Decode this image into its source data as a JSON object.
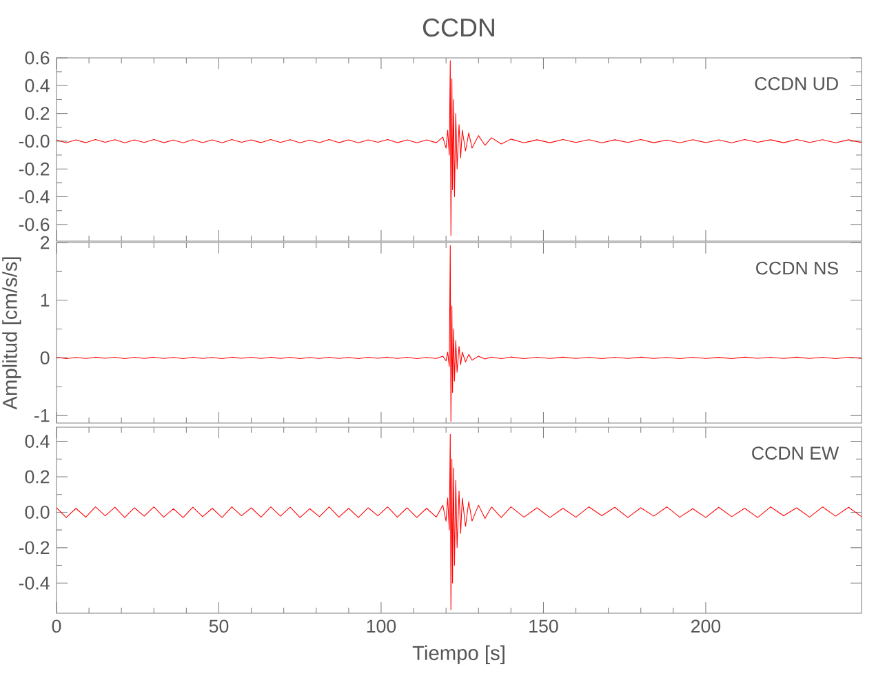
{
  "chart_data": [
    {
      "type": "line",
      "title": "CCDN",
      "annotations": [
        "CCDN   UD"
      ],
      "color": "#ff0000",
      "marker": "none",
      "tick_labels": "y",
      "xlim": [
        0,
        248
      ],
      "xticks": [
        0,
        50,
        100,
        150,
        200
      ],
      "ylim": [
        -0.72,
        0.6
      ],
      "yticks": [
        -0.6,
        -0.4,
        -0.2,
        {
          "value": 0,
          "label": "-0.0"
        },
        0.2,
        0.4,
        0.6
      ],
      "x": [
        0,
        3,
        6,
        9,
        12,
        15,
        18,
        21,
        24,
        27,
        30,
        33,
        36,
        39,
        42,
        45,
        48,
        51,
        54,
        57,
        60,
        63,
        66,
        69,
        72,
        75,
        78,
        81,
        84,
        87,
        90,
        93,
        96,
        99,
        102,
        105,
        108,
        111,
        114,
        117,
        119,
        120,
        120.5,
        121,
        121.3,
        121.5,
        121.8,
        122,
        122.3,
        122.6,
        123,
        123.4,
        124,
        124.5,
        125,
        126,
        127,
        128,
        130,
        132,
        134,
        137,
        140,
        144,
        148,
        152,
        156,
        160,
        164,
        168,
        172,
        176,
        180,
        184,
        188,
        192,
        196,
        200,
        204,
        208,
        212,
        216,
        220,
        224,
        228,
        232,
        236,
        240,
        244,
        248
      ],
      "values": [
        0.01,
        -0.012,
        0.009,
        -0.011,
        0.012,
        -0.008,
        0.011,
        -0.012,
        0.01,
        -0.009,
        0.012,
        -0.011,
        0.008,
        -0.012,
        0.011,
        -0.01,
        0.009,
        -0.012,
        0.012,
        -0.008,
        0.01,
        -0.011,
        0.012,
        -0.009,
        0.011,
        -0.012,
        0.008,
        -0.01,
        0.012,
        -0.011,
        0.009,
        -0.012,
        0.01,
        -0.008,
        0.012,
        -0.011,
        0.01,
        -0.012,
        0.009,
        -0.011,
        0.03,
        -0.05,
        0.08,
        -0.1,
        0.58,
        -0.68,
        0.45,
        -0.35,
        0.3,
        -0.4,
        0.2,
        -0.2,
        0.12,
        -0.12,
        0.08,
        -0.07,
        0.06,
        -0.05,
        0.04,
        -0.03,
        0.025,
        -0.02,
        0.015,
        -0.012,
        0.01,
        -0.011,
        0.012,
        -0.009,
        0.011,
        -0.012,
        0.01,
        -0.009,
        0.012,
        -0.011,
        0.008,
        -0.012,
        0.011,
        -0.01,
        0.009,
        -0.012,
        0.012,
        -0.008,
        0.01,
        -0.011,
        0.012,
        -0.009,
        0.011,
        -0.012,
        0.01,
        -0.01
      ]
    },
    {
      "type": "line",
      "ylabel": "Amplitud [cm/s/s]",
      "annotations": [
        "CCDN   NS"
      ],
      "color": "#ff0000",
      "marker": "none",
      "tick_labels": "y",
      "xlim": [
        0,
        248
      ],
      "xticks": [
        0,
        50,
        100,
        150,
        200
      ],
      "ylim": [
        -1.13,
        2
      ],
      "yticks": [
        -1,
        0,
        1,
        2
      ],
      "x": [
        0,
        3,
        6,
        9,
        12,
        15,
        18,
        21,
        24,
        27,
        30,
        33,
        36,
        39,
        42,
        45,
        48,
        51,
        54,
        57,
        60,
        63,
        66,
        69,
        72,
        75,
        78,
        81,
        84,
        87,
        90,
        93,
        96,
        99,
        102,
        105,
        108,
        111,
        114,
        117,
        119,
        120,
        120.5,
        121,
        121.3,
        121.5,
        121.8,
        122,
        122.3,
        122.6,
        123,
        123.4,
        124,
        124.5,
        125,
        126,
        127,
        128,
        130,
        132,
        134,
        137,
        140,
        144,
        148,
        152,
        156,
        160,
        164,
        168,
        172,
        176,
        180,
        184,
        188,
        192,
        196,
        200,
        204,
        208,
        212,
        216,
        220,
        224,
        228,
        232,
        236,
        240,
        244,
        248
      ],
      "values": [
        0.01,
        -0.012,
        0.009,
        -0.011,
        0.012,
        -0.008,
        0.011,
        -0.012,
        0.01,
        -0.009,
        0.012,
        -0.011,
        0.008,
        -0.012,
        0.011,
        -0.01,
        0.009,
        -0.012,
        0.012,
        -0.008,
        0.01,
        -0.011,
        0.012,
        -0.009,
        0.011,
        -0.012,
        0.008,
        -0.01,
        0.012,
        -0.011,
        0.009,
        -0.012,
        0.01,
        -0.008,
        0.012,
        -0.011,
        0.01,
        -0.012,
        0.009,
        -0.011,
        0.03,
        -0.05,
        0.1,
        -0.15,
        1.95,
        -1.1,
        0.9,
        -0.6,
        0.5,
        -0.4,
        0.3,
        -0.25,
        0.2,
        -0.12,
        0.1,
        -0.07,
        0.06,
        -0.04,
        0.03,
        -0.02,
        0.015,
        -0.012,
        0.015,
        -0.012,
        0.01,
        -0.011,
        0.012,
        -0.009,
        0.011,
        -0.012,
        0.01,
        -0.009,
        0.012,
        -0.011,
        0.008,
        -0.012,
        0.011,
        -0.01,
        0.009,
        -0.012,
        0.012,
        -0.008,
        0.01,
        -0.011,
        0.012,
        -0.009,
        0.011,
        -0.012,
        0.01,
        -0.01
      ]
    },
    {
      "type": "line",
      "xlabel": "Tiempo [s]",
      "annotations": [
        "CCDN   EW"
      ],
      "color": "#ff0000",
      "marker": "none",
      "xlim": [
        0,
        248
      ],
      "xticks": [
        0,
        50,
        100,
        150,
        200
      ],
      "ylim": [
        -0.57,
        0.48
      ],
      "yticks": [
        -0.4,
        -0.2,
        {
          "value": 0,
          "label": "0.0"
        },
        0.2,
        0.4
      ],
      "x": [
        0,
        3,
        6,
        9,
        12,
        15,
        18,
        21,
        24,
        27,
        30,
        33,
        36,
        39,
        42,
        45,
        48,
        51,
        54,
        57,
        60,
        63,
        66,
        69,
        72,
        75,
        78,
        81,
        84,
        87,
        90,
        93,
        96,
        99,
        102,
        105,
        108,
        111,
        114,
        117,
        119,
        120,
        120.5,
        121,
        121.3,
        121.5,
        121.8,
        122,
        122.3,
        122.6,
        123,
        123.4,
        124,
        124.5,
        125,
        126,
        127,
        128,
        130,
        132,
        134,
        137,
        140,
        144,
        148,
        152,
        156,
        160,
        164,
        168,
        172,
        176,
        180,
        184,
        188,
        192,
        196,
        200,
        204,
        208,
        212,
        216,
        220,
        224,
        228,
        232,
        236,
        240,
        244,
        248
      ],
      "values": [
        0.025,
        -0.03,
        0.022,
        -0.028,
        0.03,
        -0.02,
        0.028,
        -0.03,
        0.025,
        -0.022,
        0.03,
        -0.028,
        0.02,
        -0.03,
        0.028,
        -0.025,
        0.022,
        -0.03,
        0.03,
        -0.02,
        0.025,
        -0.028,
        0.03,
        -0.022,
        0.028,
        -0.03,
        0.02,
        -0.025,
        0.03,
        -0.028,
        0.022,
        -0.03,
        0.025,
        -0.02,
        0.03,
        -0.028,
        0.025,
        -0.03,
        0.022,
        -0.028,
        0.04,
        -0.05,
        0.08,
        -0.1,
        0.44,
        -0.55,
        0.3,
        -0.4,
        0.25,
        -0.3,
        0.18,
        -0.2,
        0.12,
        -0.12,
        0.08,
        -0.08,
        0.06,
        -0.05,
        0.04,
        -0.035,
        0.03,
        -0.03,
        0.03,
        -0.028,
        0.025,
        -0.03,
        0.022,
        -0.028,
        0.03,
        -0.02,
        0.028,
        -0.03,
        0.025,
        -0.022,
        0.03,
        -0.028,
        0.02,
        -0.03,
        0.028,
        -0.025,
        0.022,
        -0.03,
        0.03,
        -0.02,
        0.025,
        -0.028,
        0.03,
        -0.022,
        0.028,
        -0.025
      ]
    }
  ]
}
